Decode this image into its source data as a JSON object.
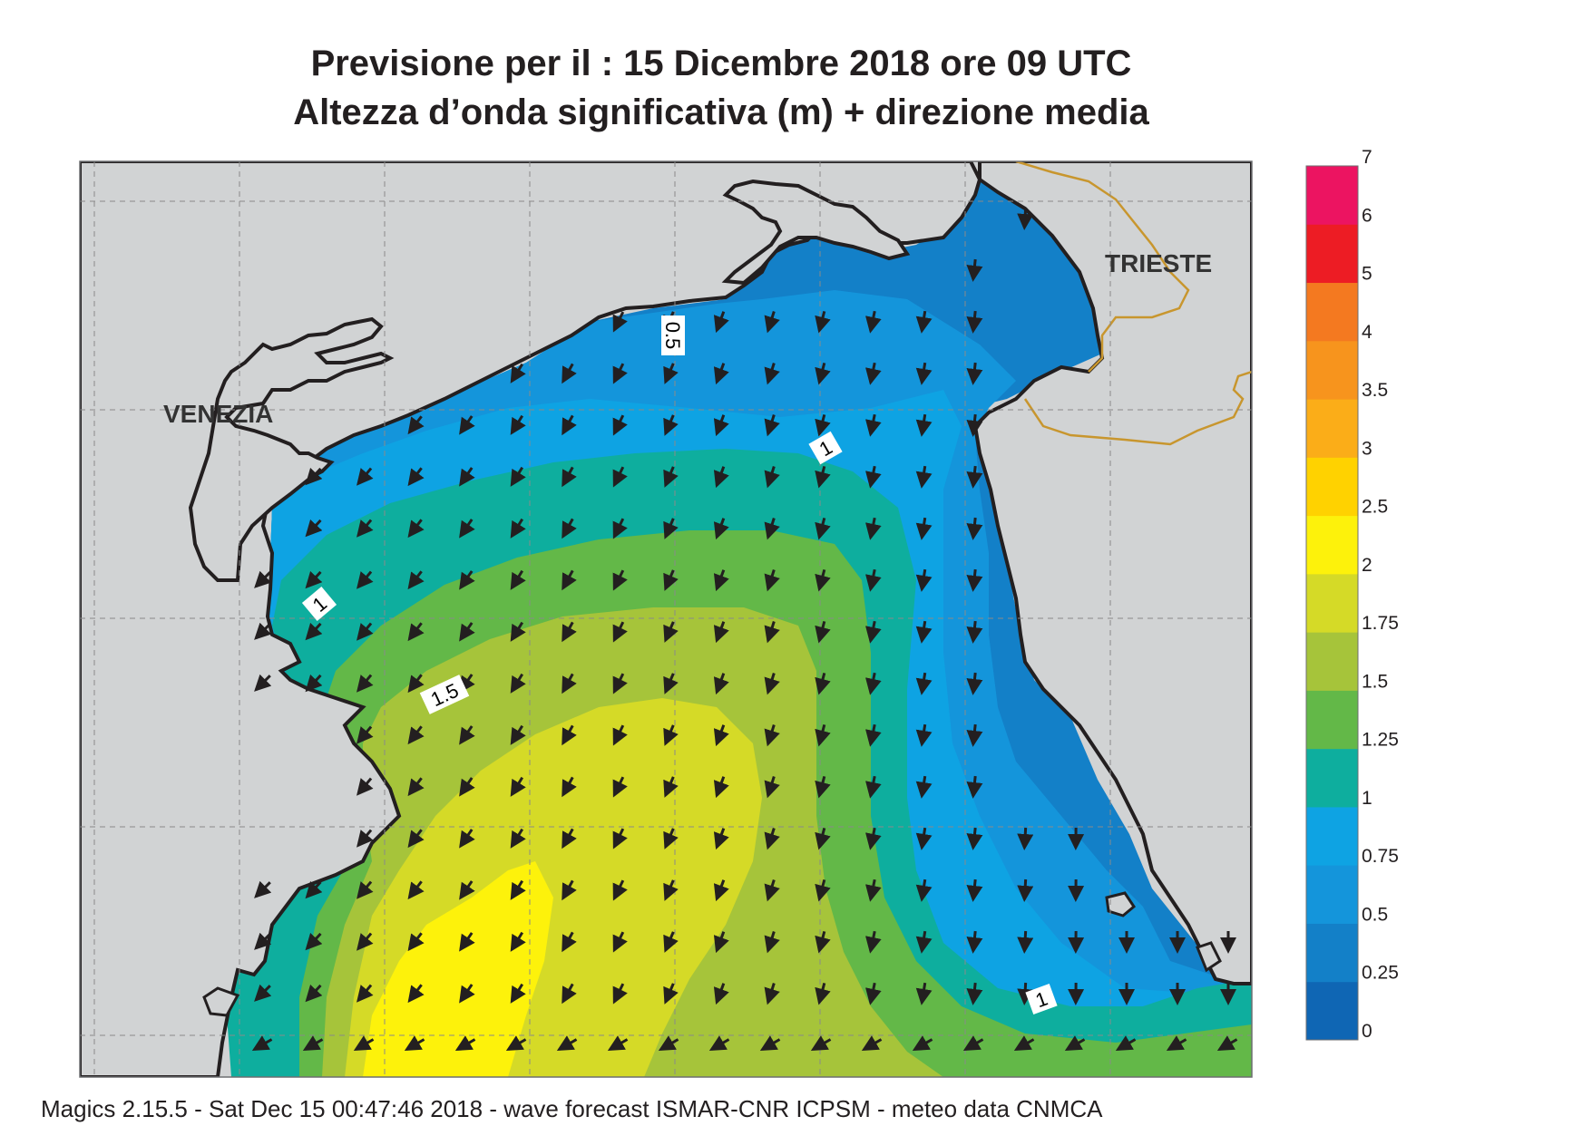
{
  "title_line1": "Previsione per il  :  15 Dicembre  2018   ore 09 UTC",
  "title_line2": "Altezza d’onda significativa (m) + direzione media",
  "cities": {
    "venezia": "VENEZIA",
    "trieste": "TRIESTE"
  },
  "contour_labels": [
    "0.5",
    "1",
    "1",
    "1",
    "1.5"
  ],
  "colorbar": {
    "labels": [
      "0",
      "0.25",
      "0.5",
      "0.75",
      "1",
      "1.25",
      "1.5",
      "1.75",
      "2",
      "2.5",
      "3",
      "3.5",
      "4",
      "5",
      "6",
      "7"
    ],
    "colors": [
      "#0f66b4",
      "#1380c8",
      "#1495db",
      "#0ea3e3",
      "#0eae9e",
      "#63b848",
      "#a6c43a",
      "#d5da27",
      "#fdf20b",
      "#ffd200",
      "#fbad18",
      "#f7941d",
      "#f47920",
      "#ed1c24",
      "#ec1461"
    ]
  },
  "footer": "Magics 2.15.5 - Sat Dec 15 00:47:46 2018 - wave forecast  ISMAR-CNR  ICPSM - meteo data   CNMCA",
  "map_colors": {
    "land": "#d1d3d4",
    "coast": "#231f20",
    "border": "#c8962e"
  }
}
